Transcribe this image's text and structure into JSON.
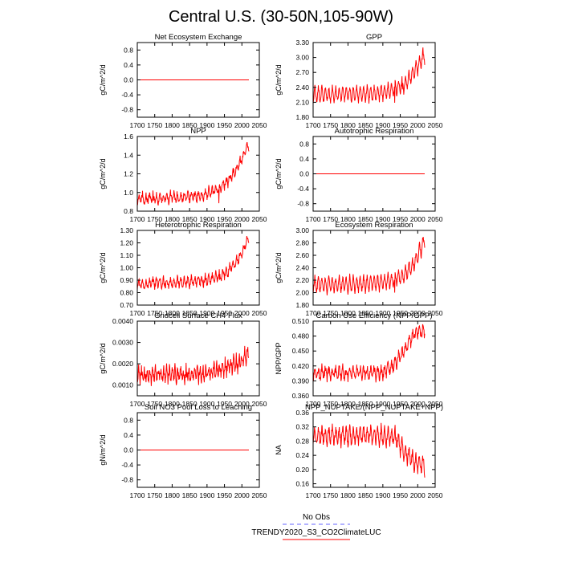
{
  "page": {
    "title": "Central U.S. (30-50N,105-90W)"
  },
  "legend": {
    "entries": [
      {
        "label": "No Obs",
        "color": "#6666ff",
        "dash": true
      },
      {
        "label": "TRENDY2020_S3_CO2ClimateLUC",
        "color": "#ff0000",
        "dash": false
      }
    ]
  },
  "colors": {
    "series": "#ff0000",
    "axis": "#000000"
  },
  "chart_data": [
    {
      "type": "line",
      "title": "Net Ecosystem Exchange",
      "ylabel": "gC/m^2/d",
      "xlim": [
        1700,
        2050
      ],
      "ylim": [
        -1.0,
        1.0
      ],
      "xticks": [
        "1700",
        "1750",
        "1800",
        "1850",
        "1900",
        "1950",
        "2000",
        "2050"
      ],
      "yticks": [
        "-0.8",
        "-0.4",
        "0.0",
        "0.4",
        "0.8"
      ],
      "series": [
        {
          "start": 1700,
          "end": 2020,
          "base": 0.0,
          "amplitude": 0.0,
          "noise": 0.0,
          "period": 10,
          "trend": []
        }
      ]
    },
    {
      "type": "line",
      "title": "GPP",
      "ylabel": "gC/m^2/d",
      "xlim": [
        1700,
        2050
      ],
      "ylim": [
        1.8,
        3.3
      ],
      "xticks": [
        "1700",
        "1750",
        "1800",
        "1850",
        "1900",
        "1950",
        "2000",
        "2050"
      ],
      "yticks": [
        "1.80",
        "2.10",
        "2.40",
        "2.70",
        "3.00",
        "3.30"
      ],
      "series": [
        {
          "start": 1700,
          "end": 2020,
          "base": 2.25,
          "amplitude": 0.16,
          "noise": 0.05,
          "period": 10,
          "trend": [
            [
              1700,
              0.0
            ],
            [
              1880,
              0.03
            ],
            [
              1930,
              0.1
            ],
            [
              1960,
              0.2
            ],
            [
              1990,
              0.45
            ],
            [
              2020,
              0.8
            ]
          ],
          "dips": [
            [
              1934,
              -0.35
            ],
            [
              1956,
              -0.15
            ]
          ]
        }
      ]
    },
    {
      "type": "line",
      "title": "NPP",
      "ylabel": "gC/m^2/d",
      "xlim": [
        1700,
        2050
      ],
      "ylim": [
        0.8,
        1.6
      ],
      "xticks": [
        "1700",
        "1750",
        "1800",
        "1850",
        "1900",
        "1950",
        "2000",
        "2050"
      ],
      "yticks": [
        "0.8",
        "1.0",
        "1.2",
        "1.4",
        "1.6"
      ],
      "series": [
        {
          "start": 1700,
          "end": 2020,
          "base": 0.93,
          "amplitude": 0.05,
          "noise": 0.035,
          "period": 10,
          "trend": [
            [
              1700,
              0.0
            ],
            [
              1880,
              0.03
            ],
            [
              1930,
              0.1
            ],
            [
              1960,
              0.2
            ],
            [
              1990,
              0.35
            ],
            [
              2020,
              0.58
            ]
          ],
          "dips": [
            [
              1934,
              -0.17
            ]
          ]
        }
      ]
    },
    {
      "type": "line",
      "title": "Autotrophic Respiration",
      "ylabel": "gC/m^2/d",
      "xlim": [
        1700,
        2050
      ],
      "ylim": [
        -1.0,
        1.0
      ],
      "xticks": [
        "1700",
        "1750",
        "1800",
        "1850",
        "1900",
        "1950",
        "2000",
        "2050"
      ],
      "yticks": [
        "-0.8",
        "-0.4",
        "0.0",
        "0.4",
        "0.8"
      ],
      "series": [
        {
          "start": 1700,
          "end": 2020,
          "base": 0.0,
          "amplitude": 0.0,
          "noise": 0.0,
          "period": 10,
          "trend": []
        }
      ]
    },
    {
      "type": "line",
      "title": "Heterotrophic Respiration",
      "ylabel": "gC/m^2/d",
      "xlim": [
        1700,
        2050
      ],
      "ylim": [
        0.7,
        1.3
      ],
      "xticks": [
        "1700",
        "1750",
        "1800",
        "1850",
        "1900",
        "1950",
        "2000",
        "2050"
      ],
      "yticks": [
        "0.70",
        "0.80",
        "0.90",
        "1.00",
        "1.10",
        "1.20",
        "1.30"
      ],
      "series": [
        {
          "start": 1700,
          "end": 2020,
          "base": 0.87,
          "amplitude": 0.04,
          "noise": 0.025,
          "period": 10,
          "trend": [
            [
              1700,
              0.0
            ],
            [
              1880,
              0.02
            ],
            [
              1930,
              0.05
            ],
            [
              1960,
              0.1
            ],
            [
              1990,
              0.2
            ],
            [
              2020,
              0.37
            ]
          ],
          "dips": [
            [
              1936,
              -0.07
            ]
          ]
        }
      ]
    },
    {
      "type": "line",
      "title": "Ecosystem Respiration",
      "ylabel": "gC/m^2/d",
      "xlim": [
        1700,
        2050
      ],
      "ylim": [
        1.8,
        3.0
      ],
      "xticks": [
        "1700",
        "1750",
        "1800",
        "1850",
        "1900",
        "1950",
        "2000",
        "2050"
      ],
      "yticks": [
        "1.80",
        "2.00",
        "2.20",
        "2.40",
        "2.60",
        "2.80",
        "3.00"
      ],
      "series": [
        {
          "start": 1700,
          "end": 2020,
          "base": 2.12,
          "amplitude": 0.13,
          "noise": 0.04,
          "period": 10,
          "trend": [
            [
              1700,
              0.0
            ],
            [
              1880,
              0.03
            ],
            [
              1930,
              0.08
            ],
            [
              1960,
              0.15
            ],
            [
              1990,
              0.35
            ],
            [
              2020,
              0.72
            ]
          ],
          "dips": [
            [
              1934,
              -0.25
            ]
          ]
        }
      ]
    },
    {
      "type": "line",
      "title": "Gridcell Surface CH4 Flux",
      "ylabel": "gC/m^2/d",
      "xlim": [
        1700,
        2050
      ],
      "ylim": [
        0.0005,
        0.004
      ],
      "xticks": [
        "1700",
        "1750",
        "1800",
        "1850",
        "1900",
        "1950",
        "2000",
        "2050"
      ],
      "yticks": [
        "0.0010",
        "0.0020",
        "0.0030",
        "0.0040"
      ],
      "series": [
        {
          "start": 1700,
          "end": 2020,
          "base": 0.00145,
          "amplitude": 0.0003,
          "noise": 0.00025,
          "period": 8,
          "trend": [
            [
              1700,
              0.0
            ],
            [
              1880,
              0.0001
            ],
            [
              1930,
              0.0002
            ],
            [
              1960,
              0.0004
            ],
            [
              1990,
              0.0006
            ],
            [
              2020,
              0.001
            ]
          ],
          "dips": []
        }
      ]
    },
    {
      "type": "line",
      "title": "Carbon Use Efficiency (NPP/GPP)",
      "ylabel": "NPP/GPP",
      "xlim": [
        1700,
        2050
      ],
      "ylim": [
        0.36,
        0.51
      ],
      "xticks": [
        "1700",
        "1750",
        "1800",
        "1850",
        "1900",
        "1950",
        "2000",
        "2050"
      ],
      "yticks": [
        "0.360",
        "0.390",
        "0.420",
        "0.450",
        "0.480",
        "0.510"
      ],
      "series": [
        {
          "start": 1700,
          "end": 2020,
          "base": 0.405,
          "amplitude": 0.012,
          "noise": 0.008,
          "period": 10,
          "trend": [
            [
              1700,
              0.0
            ],
            [
              1900,
              0.002
            ],
            [
              1930,
              0.015
            ],
            [
              1960,
              0.045
            ],
            [
              1990,
              0.08
            ],
            [
              2020,
              0.085
            ]
          ],
          "dips": []
        }
      ]
    },
    {
      "type": "line",
      "title": "Soil NO3 Pool Loss to Leaching",
      "ylabel": "gN/m^2/d",
      "xlim": [
        1700,
        2050
      ],
      "ylim": [
        -1.0,
        1.0
      ],
      "xticks": [
        "1700",
        "1750",
        "1800",
        "1850",
        "1900",
        "1950",
        "2000",
        "2050"
      ],
      "yticks": [
        "-0.8",
        "-0.4",
        "0.0",
        "0.4",
        "0.8"
      ],
      "series": [
        {
          "start": 1700,
          "end": 2020,
          "base": 0.0,
          "amplitude": 0.0,
          "noise": 0.0,
          "period": 10,
          "trend": []
        }
      ]
    },
    {
      "type": "line",
      "title": "NPP_NUPTAKE/(NPP_NUPTAKE+NPP)",
      "ylabel": "NA",
      "xlim": [
        1700,
        2050
      ],
      "ylim": [
        0.15,
        0.36
      ],
      "xticks": [
        "1700",
        "1750",
        "1800",
        "1850",
        "1900",
        "1950",
        "2000",
        "2050"
      ],
      "yticks": [
        "0.16",
        "0.20",
        "0.24",
        "0.28",
        "0.32",
        "0.36"
      ],
      "series": [
        {
          "start": 1700,
          "end": 2020,
          "base": 0.295,
          "amplitude": 0.025,
          "noise": 0.012,
          "period": 10,
          "trend": [
            [
              1700,
              0.0
            ],
            [
              1900,
              0.0
            ],
            [
              1935,
              -0.005
            ],
            [
              1960,
              -0.04
            ],
            [
              1990,
              -0.07
            ],
            [
              2020,
              -0.085
            ]
          ],
          "dips": []
        }
      ]
    }
  ]
}
